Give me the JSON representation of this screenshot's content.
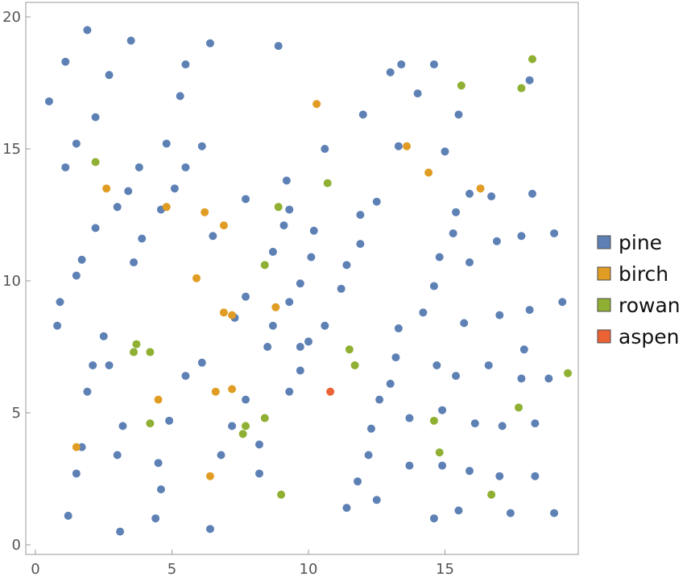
{
  "chart_data": {
    "type": "scatter",
    "title": "",
    "xlabel": "",
    "ylabel": "",
    "xlim": [
      0,
      20
    ],
    "ylim": [
      0,
      20
    ],
    "x_ticks": [
      0,
      5,
      10,
      15
    ],
    "y_ticks": [
      0,
      5,
      10,
      15,
      20
    ],
    "grid": false,
    "legend_placement": "right",
    "series": [
      {
        "name": "pine",
        "color": "#5E81B5",
        "points": [
          [
            0.5,
            16.8
          ],
          [
            1.1,
            18.3
          ],
          [
            1.9,
            19.5
          ],
          [
            3.5,
            19.1
          ],
          [
            6.4,
            19.0
          ],
          [
            8.9,
            18.9
          ],
          [
            5.5,
            18.2
          ],
          [
            2.7,
            17.8
          ],
          [
            5.3,
            17.0
          ],
          [
            2.2,
            16.2
          ],
          [
            1.5,
            15.2
          ],
          [
            4.8,
            15.2
          ],
          [
            6.1,
            15.1
          ],
          [
            1.1,
            14.3
          ],
          [
            3.8,
            14.3
          ],
          [
            5.5,
            14.3
          ],
          [
            3.4,
            13.4
          ],
          [
            5.1,
            13.5
          ],
          [
            4.6,
            12.7
          ],
          [
            7.7,
            13.1
          ],
          [
            9.2,
            13.8
          ],
          [
            9.3,
            12.7
          ],
          [
            9.1,
            12.1
          ],
          [
            3.0,
            12.8
          ],
          [
            2.2,
            12.0
          ],
          [
            3.9,
            11.6
          ],
          [
            6.5,
            11.7
          ],
          [
            1.7,
            10.8
          ],
          [
            3.6,
            10.7
          ],
          [
            1.5,
            10.2
          ],
          [
            8.7,
            11.1
          ],
          [
            10.2,
            11.9
          ],
          [
            10.1,
            10.9
          ],
          [
            9.7,
            9.9
          ],
          [
            0.9,
            9.2
          ],
          [
            0.8,
            8.3
          ],
          [
            2.5,
            7.9
          ],
          [
            7.3,
            8.6
          ],
          [
            7.7,
            9.4
          ],
          [
            8.7,
            8.3
          ],
          [
            9.3,
            9.2
          ],
          [
            2.1,
            6.8
          ],
          [
            2.7,
            6.8
          ],
          [
            1.9,
            5.8
          ],
          [
            5.5,
            6.4
          ],
          [
            6.1,
            6.9
          ],
          [
            8.5,
            7.5
          ],
          [
            9.7,
            7.5
          ],
          [
            10.0,
            7.7
          ],
          [
            9.7,
            6.6
          ],
          [
            9.3,
            5.8
          ],
          [
            7.7,
            5.5
          ],
          [
            7.2,
            4.5
          ],
          [
            4.9,
            4.7
          ],
          [
            3.2,
            4.5
          ],
          [
            1.7,
            3.7
          ],
          [
            1.5,
            2.7
          ],
          [
            3.0,
            3.4
          ],
          [
            4.5,
            3.1
          ],
          [
            4.6,
            2.1
          ],
          [
            6.8,
            3.4
          ],
          [
            8.2,
            3.8
          ],
          [
            8.2,
            2.7
          ],
          [
            1.2,
            1.1
          ],
          [
            3.1,
            0.5
          ],
          [
            4.4,
            1.0
          ],
          [
            6.4,
            0.6
          ],
          [
            10.6,
            15.0
          ],
          [
            12.0,
            16.3
          ],
          [
            13.0,
            17.9
          ],
          [
            13.4,
            18.2
          ],
          [
            14.0,
            17.1
          ],
          [
            14.6,
            18.2
          ],
          [
            13.3,
            15.1
          ],
          [
            15.0,
            14.9
          ],
          [
            15.5,
            16.3
          ],
          [
            18.1,
            17.6
          ],
          [
            12.5,
            13.0
          ],
          [
            11.9,
            12.5
          ],
          [
            15.4,
            12.6
          ],
          [
            15.9,
            13.3
          ],
          [
            16.7,
            13.2
          ],
          [
            18.2,
            13.3
          ],
          [
            15.3,
            11.8
          ],
          [
            14.8,
            10.9
          ],
          [
            11.9,
            11.4
          ],
          [
            11.4,
            10.6
          ],
          [
            11.2,
            9.7
          ],
          [
            14.6,
            9.8
          ],
          [
            15.9,
            10.7
          ],
          [
            16.9,
            11.5
          ],
          [
            17.8,
            11.7
          ],
          [
            19.0,
            11.8
          ],
          [
            10.6,
            8.3
          ],
          [
            13.3,
            8.2
          ],
          [
            14.2,
            8.8
          ],
          [
            15.7,
            8.4
          ],
          [
            17.0,
            8.7
          ],
          [
            18.1,
            8.9
          ],
          [
            19.3,
            9.2
          ],
          [
            13.2,
            7.1
          ],
          [
            13.0,
            6.1
          ],
          [
            14.7,
            6.8
          ],
          [
            15.4,
            6.4
          ],
          [
            16.6,
            6.8
          ],
          [
            17.9,
            7.4
          ],
          [
            17.8,
            6.3
          ],
          [
            18.8,
            6.3
          ],
          [
            12.6,
            5.5
          ],
          [
            13.7,
            4.8
          ],
          [
            14.9,
            5.1
          ],
          [
            12.3,
            4.4
          ],
          [
            16.1,
            4.6
          ],
          [
            17.1,
            4.5
          ],
          [
            18.3,
            4.6
          ],
          [
            12.2,
            3.4
          ],
          [
            13.7,
            3.0
          ],
          [
            14.9,
            3.0
          ],
          [
            15.9,
            2.8
          ],
          [
            17.0,
            2.6
          ],
          [
            18.3,
            2.6
          ],
          [
            11.8,
            2.4
          ],
          [
            12.5,
            1.7
          ],
          [
            11.4,
            1.4
          ],
          [
            15.5,
            1.3
          ],
          [
            17.4,
            1.2
          ],
          [
            19.0,
            1.2
          ],
          [
            14.6,
            1.0
          ]
        ]
      },
      {
        "name": "birch",
        "color": "#E19C24",
        "points": [
          [
            10.3,
            16.7
          ],
          [
            13.6,
            15.1
          ],
          [
            14.4,
            14.1
          ],
          [
            16.3,
            13.5
          ],
          [
            2.6,
            13.5
          ],
          [
            4.8,
            12.8
          ],
          [
            6.2,
            12.6
          ],
          [
            6.9,
            12.1
          ],
          [
            5.9,
            10.1
          ],
          [
            8.8,
            9.0
          ],
          [
            6.9,
            8.8
          ],
          [
            7.2,
            8.7
          ],
          [
            6.6,
            5.8
          ],
          [
            7.2,
            5.9
          ],
          [
            4.5,
            5.5
          ],
          [
            1.5,
            3.7
          ],
          [
            6.4,
            2.6
          ]
        ]
      },
      {
        "name": "rowan",
        "color": "#8FB032",
        "points": [
          [
            2.2,
            14.5
          ],
          [
            3.7,
            7.6
          ],
          [
            3.6,
            7.3
          ],
          [
            4.2,
            7.3
          ],
          [
            4.2,
            4.6
          ],
          [
            8.9,
            12.8
          ],
          [
            10.7,
            13.7
          ],
          [
            8.4,
            10.6
          ],
          [
            7.6,
            4.2
          ],
          [
            7.7,
            4.5
          ],
          [
            8.4,
            4.8
          ],
          [
            9.0,
            1.9
          ],
          [
            11.5,
            7.4
          ],
          [
            11.7,
            6.8
          ],
          [
            14.6,
            4.7
          ],
          [
            14.8,
            3.5
          ],
          [
            15.6,
            17.4
          ],
          [
            17.8,
            17.3
          ],
          [
            18.2,
            18.4
          ],
          [
            17.7,
            5.2
          ],
          [
            19.5,
            6.5
          ],
          [
            16.7,
            1.9
          ]
        ]
      },
      {
        "name": "aspen",
        "color": "#EB6235",
        "points": [
          [
            10.8,
            5.8
          ]
        ]
      }
    ]
  }
}
